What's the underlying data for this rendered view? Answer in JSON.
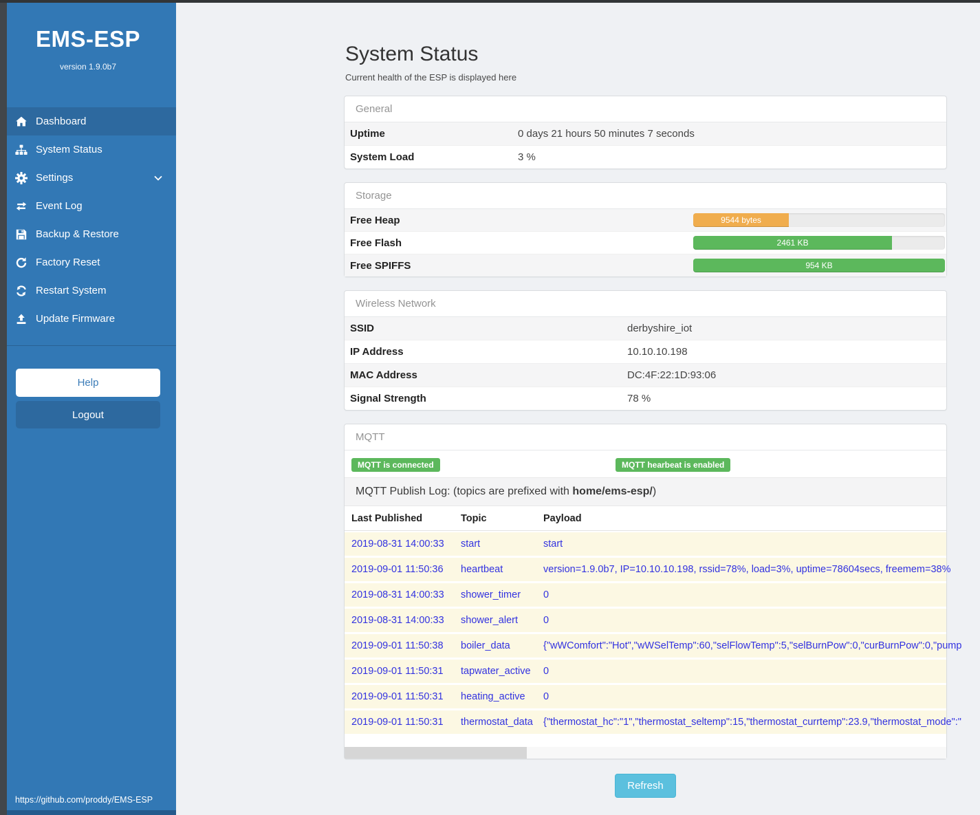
{
  "colors": {
    "sidebar-blue": "#3278b5",
    "sidebar-active": "#2d699f",
    "badge-green": "#5cb85c",
    "bar-orange": "#f0ad4e",
    "bar-green": "#5cb85c",
    "refresh-blue": "#5bc0de",
    "log-text-blue": "#3232e0",
    "log-row-cream": "#fcf8e3"
  },
  "sidebar": {
    "title": "EMS-ESP",
    "version": "version 1.9.0b7",
    "nav": [
      {
        "label": "Dashboard",
        "icon": "home-icon",
        "active": true
      },
      {
        "label": "System Status",
        "icon": "sitemap-icon"
      },
      {
        "label": "Settings",
        "icon": "gear-icon",
        "chevron": true
      },
      {
        "label": "Event Log",
        "icon": "exchange-icon"
      },
      {
        "label": "Backup & Restore",
        "icon": "save-icon"
      },
      {
        "label": "Factory Reset",
        "icon": "redo-icon"
      },
      {
        "label": "Restart System",
        "icon": "sync-icon"
      },
      {
        "label": "Update Firmware",
        "icon": "upload-icon"
      }
    ],
    "help_label": "Help",
    "logout_label": "Logout",
    "footer_link": "https://github.com/proddy/EMS-ESP"
  },
  "page": {
    "title": "System Status",
    "subtitle": "Current health of the ESP is displayed here"
  },
  "panels": {
    "general": {
      "header": "General",
      "rows": [
        {
          "label": "Uptime",
          "value": "0 days 21 hours 50 minutes 7 seconds"
        },
        {
          "label": "System Load",
          "value": "3 %"
        }
      ]
    },
    "storage": {
      "header": "Storage",
      "rows": [
        {
          "label": "Free Heap",
          "bar_label": "9544 bytes",
          "percent": 38,
          "color": "#f0ad4e"
        },
        {
          "label": "Free Flash",
          "bar_label": "2461 KB",
          "percent": 79,
          "color": "#5cb85c"
        },
        {
          "label": "Free SPIFFS",
          "bar_label": "954 KB",
          "percent": 100,
          "color": "#5cb85c"
        }
      ]
    },
    "wireless": {
      "header": "Wireless Network",
      "rows": [
        {
          "label": "SSID",
          "value": "derbyshire_iot"
        },
        {
          "label": "IP Address",
          "value": "10.10.10.198"
        },
        {
          "label": "MAC Address",
          "value": "DC:4F:22:1D:93:06"
        },
        {
          "label": "Signal Strength",
          "value": "78 %"
        }
      ]
    },
    "mqtt": {
      "header": "MQTT",
      "badges": [
        "MQTT is connected",
        "MQTT hearbeat is enabled"
      ],
      "publish_log": {
        "prefix": "MQTT Publish Log: (topics are prefixed with ",
        "topic_prefix": "home/ems-esp/",
        "suffix": ")"
      },
      "table": {
        "columns": [
          "Last Published",
          "Topic",
          "Payload"
        ],
        "rows": [
          {
            "time": "2019-08-31 14:00:33",
            "topic": "start",
            "payload": "start"
          },
          {
            "time": "2019-09-01 11:50:36",
            "topic": "heartbeat",
            "payload": "version=1.9.0b7, IP=10.10.10.198, rssid=78%, load=3%, uptime=78604secs, freemem=38%"
          },
          {
            "time": "2019-08-31 14:00:33",
            "topic": "shower_timer",
            "payload": "0"
          },
          {
            "time": "2019-08-31 14:00:33",
            "topic": "shower_alert",
            "payload": "0"
          },
          {
            "time": "2019-09-01 11:50:38",
            "topic": "boiler_data",
            "payload": "{\"wWComfort\":\"Hot\",\"wWSelTemp\":60,\"selFlowTemp\":5,\"selBurnPow\":0,\"curBurnPow\":0,\"pump"
          },
          {
            "time": "2019-09-01 11:50:31",
            "topic": "tapwater_active",
            "payload": "0"
          },
          {
            "time": "2019-09-01 11:50:31",
            "topic": "heating_active",
            "payload": "0"
          },
          {
            "time": "2019-09-01 11:50:31",
            "topic": "thermostat_data",
            "payload": "{\"thermostat_hc\":\"1\",\"thermostat_seltemp\":15,\"thermostat_currtemp\":23.9,\"thermostat_mode\":\""
          }
        ]
      }
    }
  },
  "refresh_label": "Refresh"
}
